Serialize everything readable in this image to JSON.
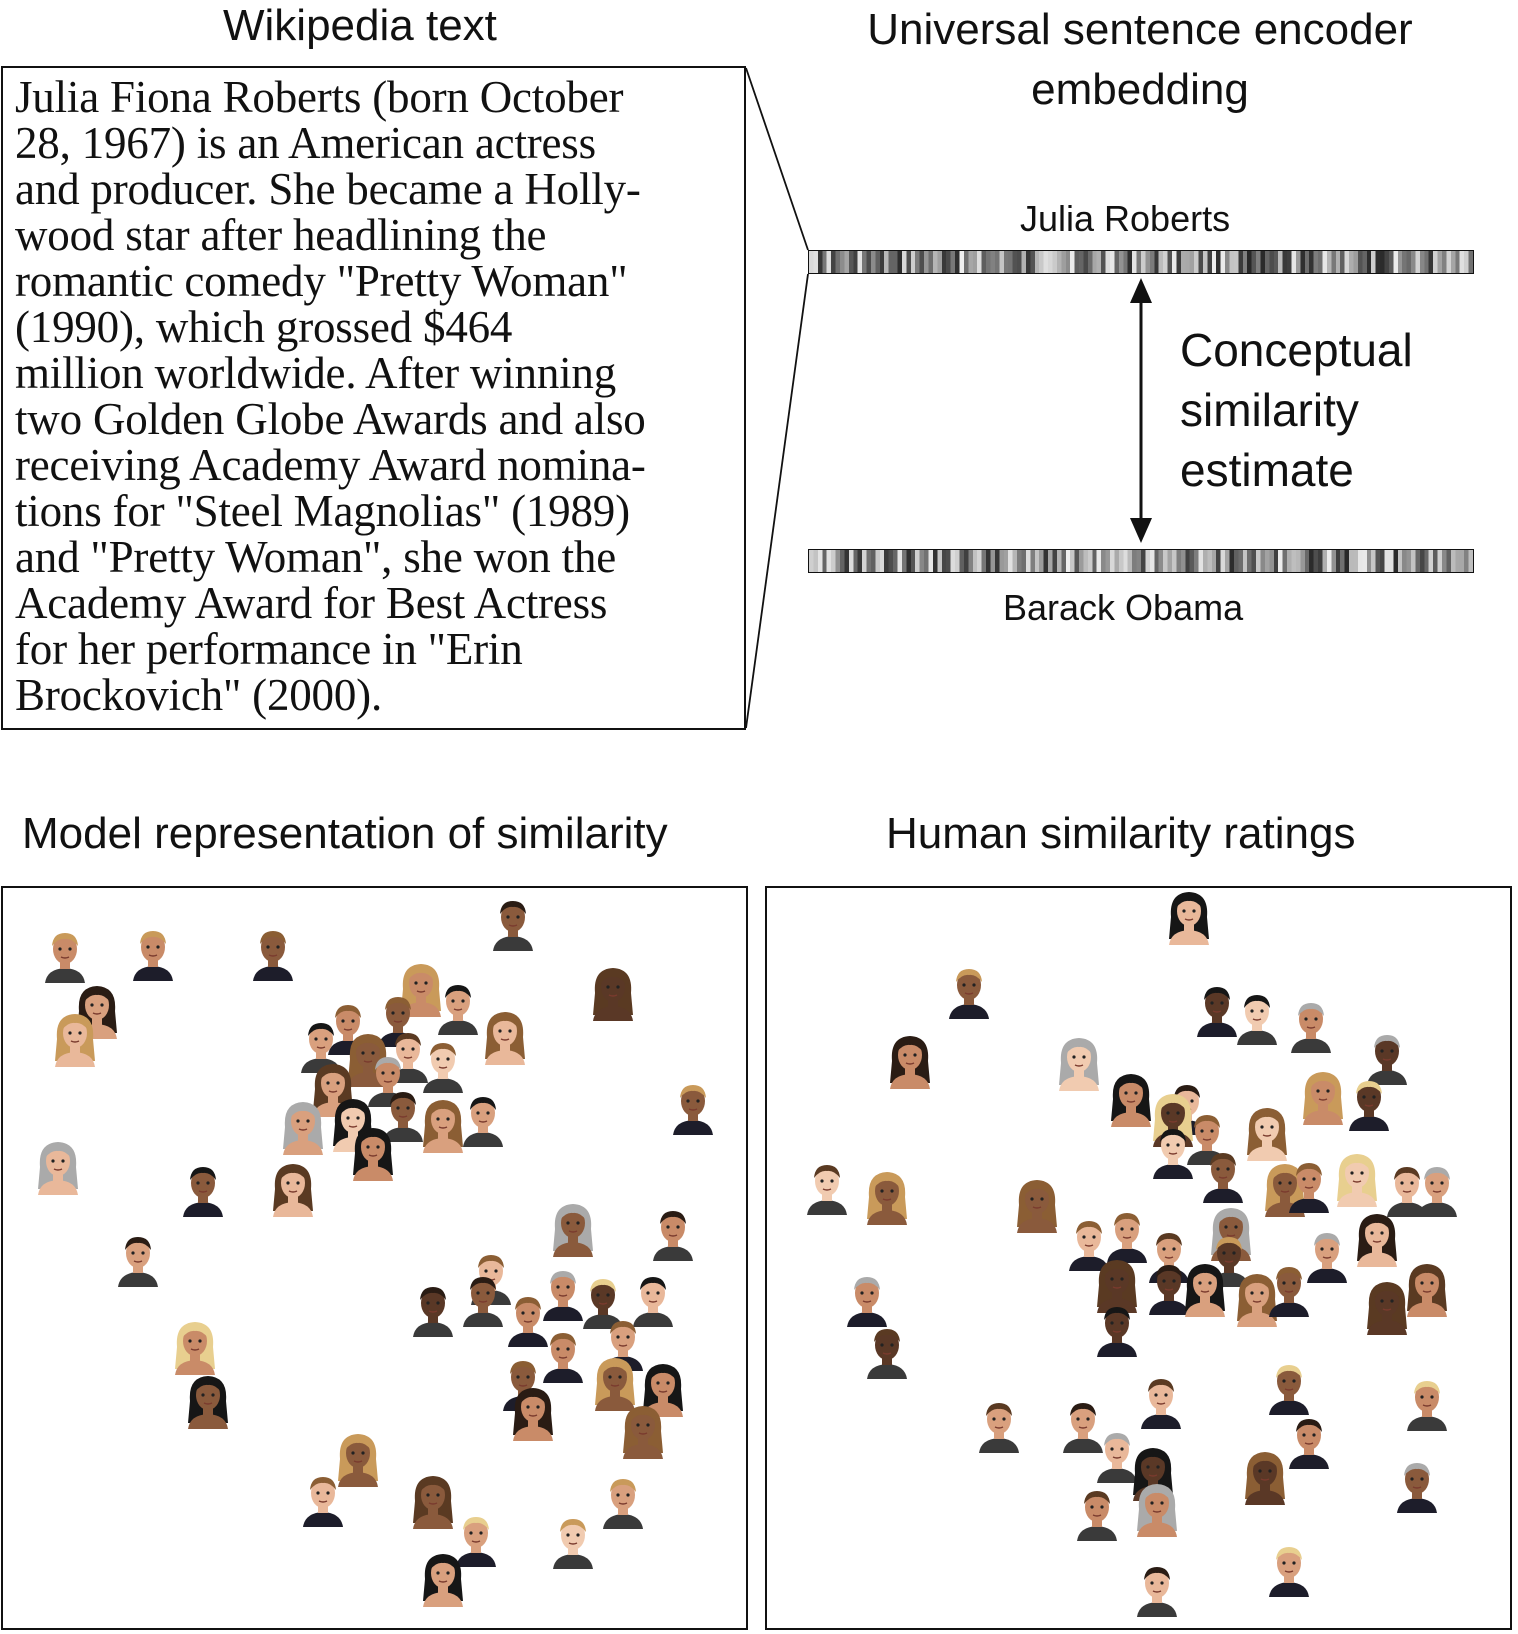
{
  "titles": {
    "wikipedia": "Wikipedia text",
    "encoder": "Universal sentence encoder embedding",
    "model": "Model representation of similarity",
    "human": "Human similarity ratings"
  },
  "wiki_lines": [
    "Julia Fiona Roberts (born October",
    "28, 1967) is an American actress",
    "and producer. She became a Holly-",
    "wood star after headlining the",
    "romantic comedy \"Pretty Woman\"",
    "(1990), which grossed $464",
    "million worldwide. After winning",
    "two Golden Globe Awards and also",
    "receiving Academy Award nomina-",
    "tions for \"Steel Magnolias\" (1989)",
    "and \"Pretty Woman\", she won the",
    "Academy Award for Best Actress",
    "for her performance in \"Erin",
    "Brockovich\" (2000)."
  ],
  "embedding_labels": {
    "top": "Julia Roberts",
    "bottom": "Barack Obama"
  },
  "similarity_label": [
    "Conceptual",
    "similarity",
    "estimate"
  ],
  "palette": {
    "skin": [
      "#e9b89a",
      "#d9a07e",
      "#c98b68",
      "#8a5a3c",
      "#5a3826",
      "#f1cbb0"
    ],
    "hair": [
      "#2a1c14",
      "#5a3a22",
      "#8b5e34",
      "#c99a5a",
      "#e8cf8f",
      "#aaaaaa",
      "#161616"
    ]
  }
}
